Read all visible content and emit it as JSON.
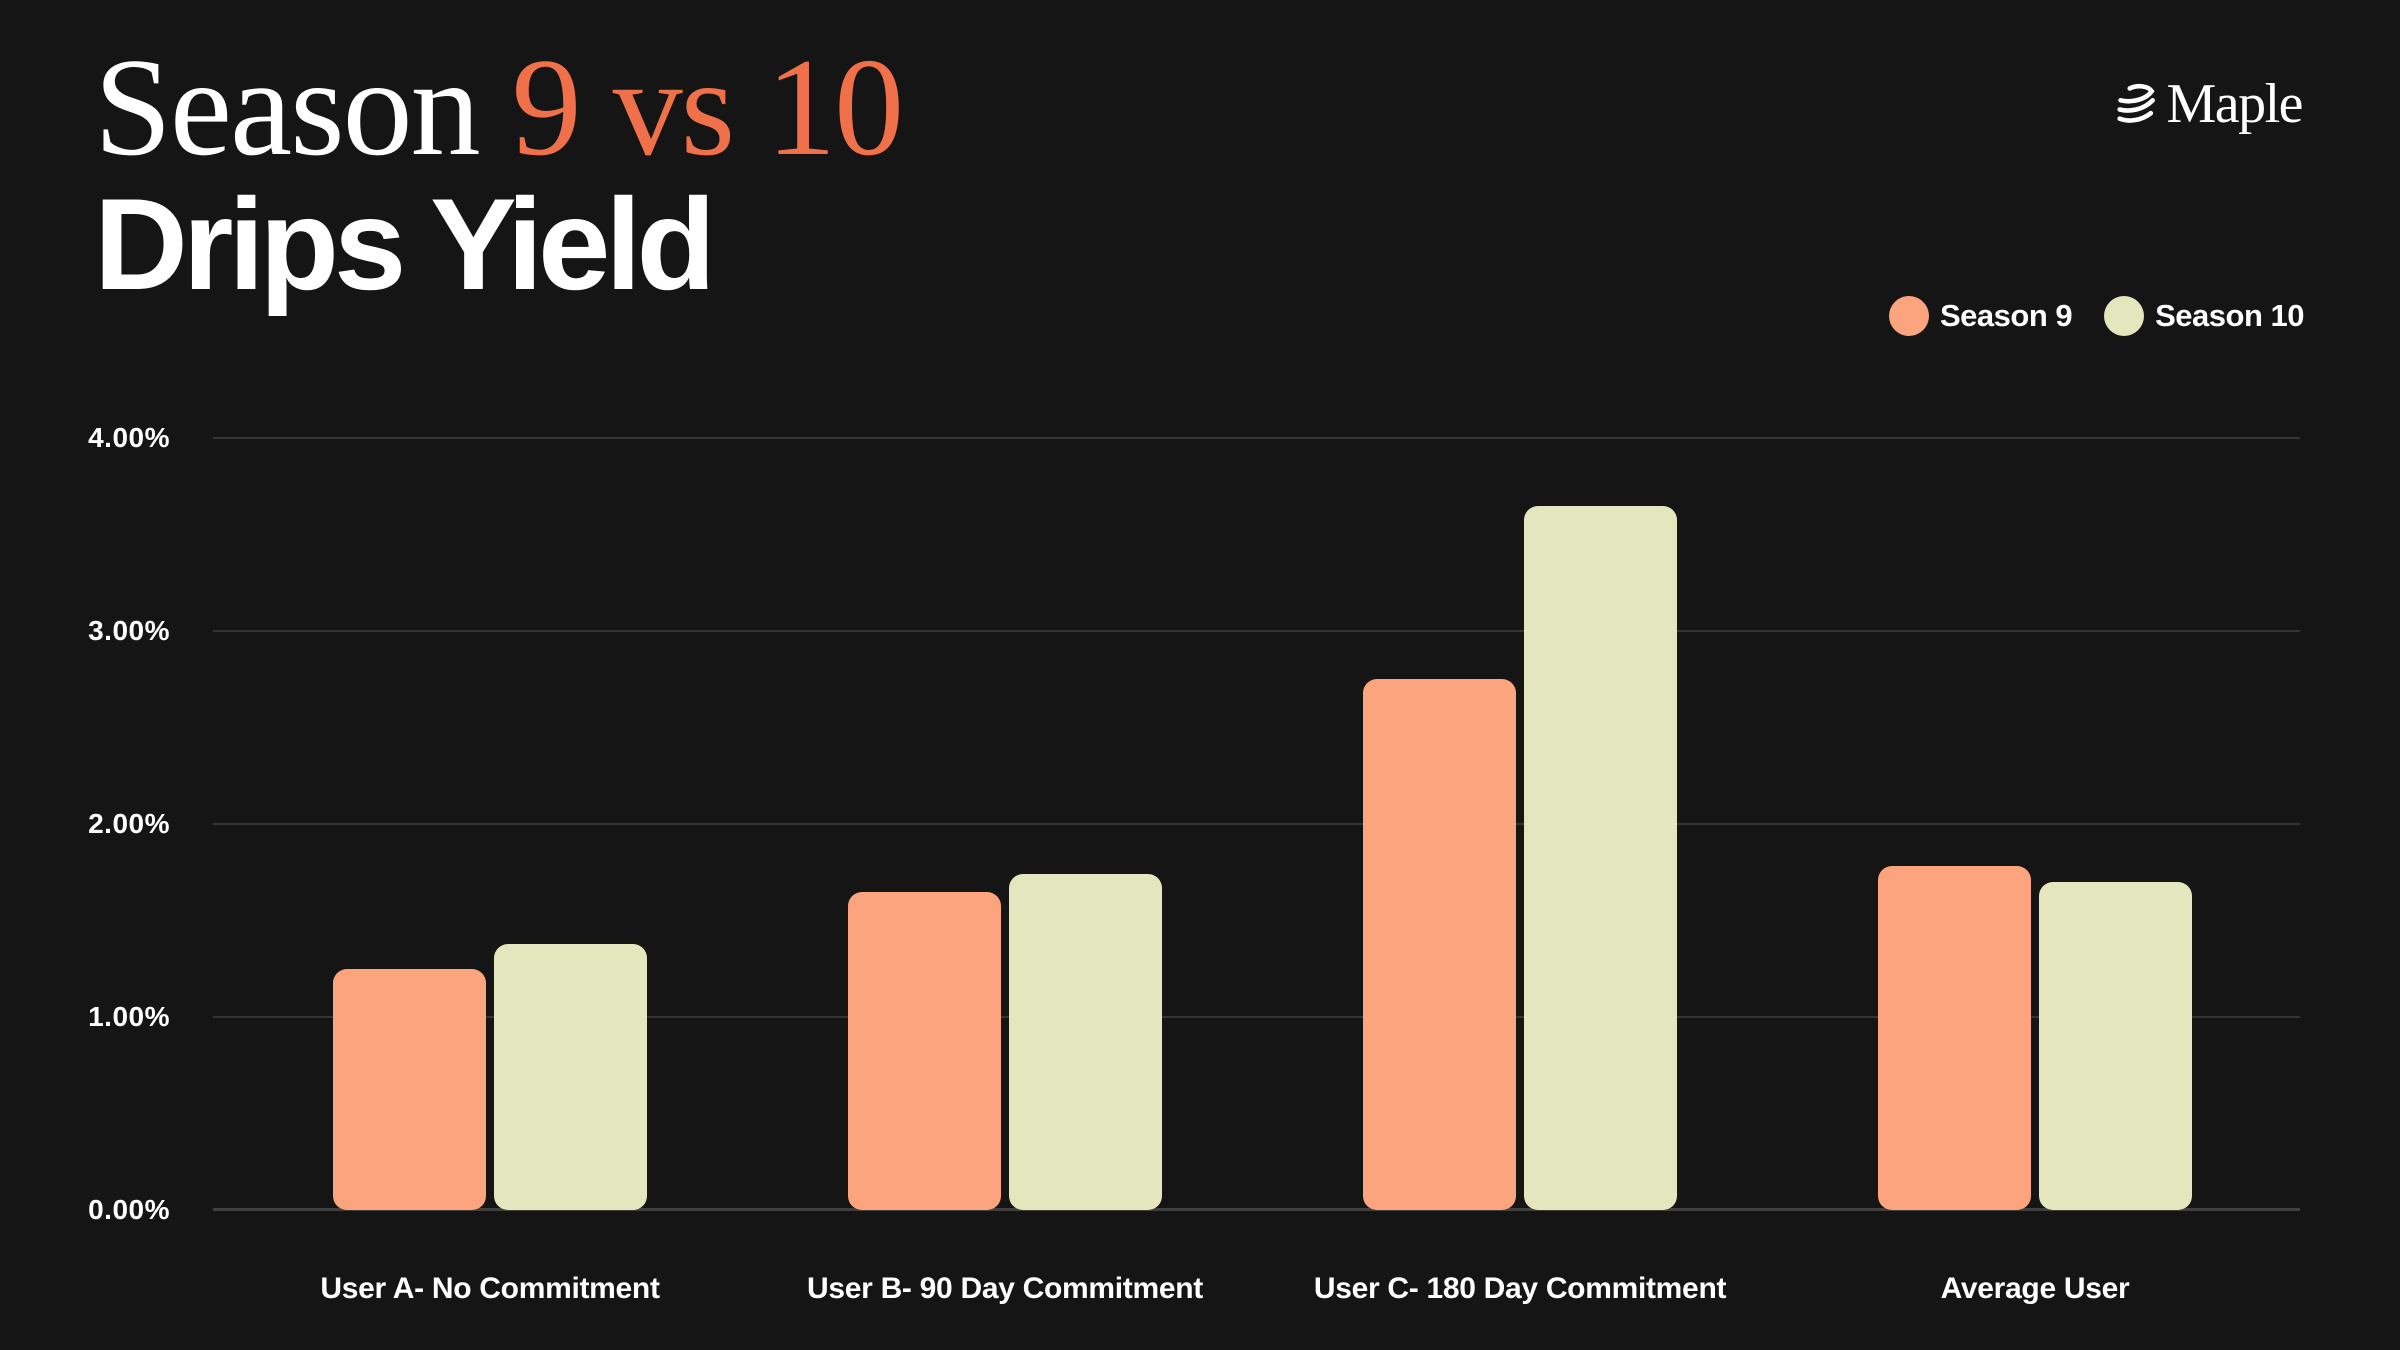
{
  "header": {
    "title_line1_white": "Season ",
    "title_line1_accent": "9 vs 10",
    "title_line2": "Drips Yield",
    "brand": "Maple"
  },
  "legend": [
    {
      "label": "Season 9",
      "color": "#FBA47D"
    },
    {
      "label": "Season 10",
      "color": "#E4E6BD"
    }
  ],
  "chart_data": {
    "type": "bar",
    "title": "Season 9 vs 10 Drips Yield",
    "categories": [
      "User A- No Commitment",
      "User B- 90 Day Commitment",
      "User C- 180 Day Commitment",
      "Average User"
    ],
    "series": [
      {
        "name": "Season 9",
        "color": "#FBA47D",
        "values": [
          1.25,
          1.65,
          2.75,
          1.78
        ]
      },
      {
        "name": "Season 10",
        "color": "#E4E6BD",
        "values": [
          1.38,
          1.74,
          3.65,
          1.7
        ]
      }
    ],
    "unit": "%",
    "xlabel": "",
    "ylabel": "",
    "ylim": [
      0,
      4
    ],
    "y_ticks": [
      "4.00%",
      "3.00%",
      "2.00%",
      "1.00%",
      "0.00%"
    ],
    "grid": true,
    "legend_position": "top-right"
  },
  "colors": {
    "background": "#151515",
    "accent_orange": "#F0704A",
    "bar_season9": "#FBA47D",
    "bar_season10": "#E4E6BD",
    "gridline": "#343434",
    "text": "#FFFFFF"
  }
}
